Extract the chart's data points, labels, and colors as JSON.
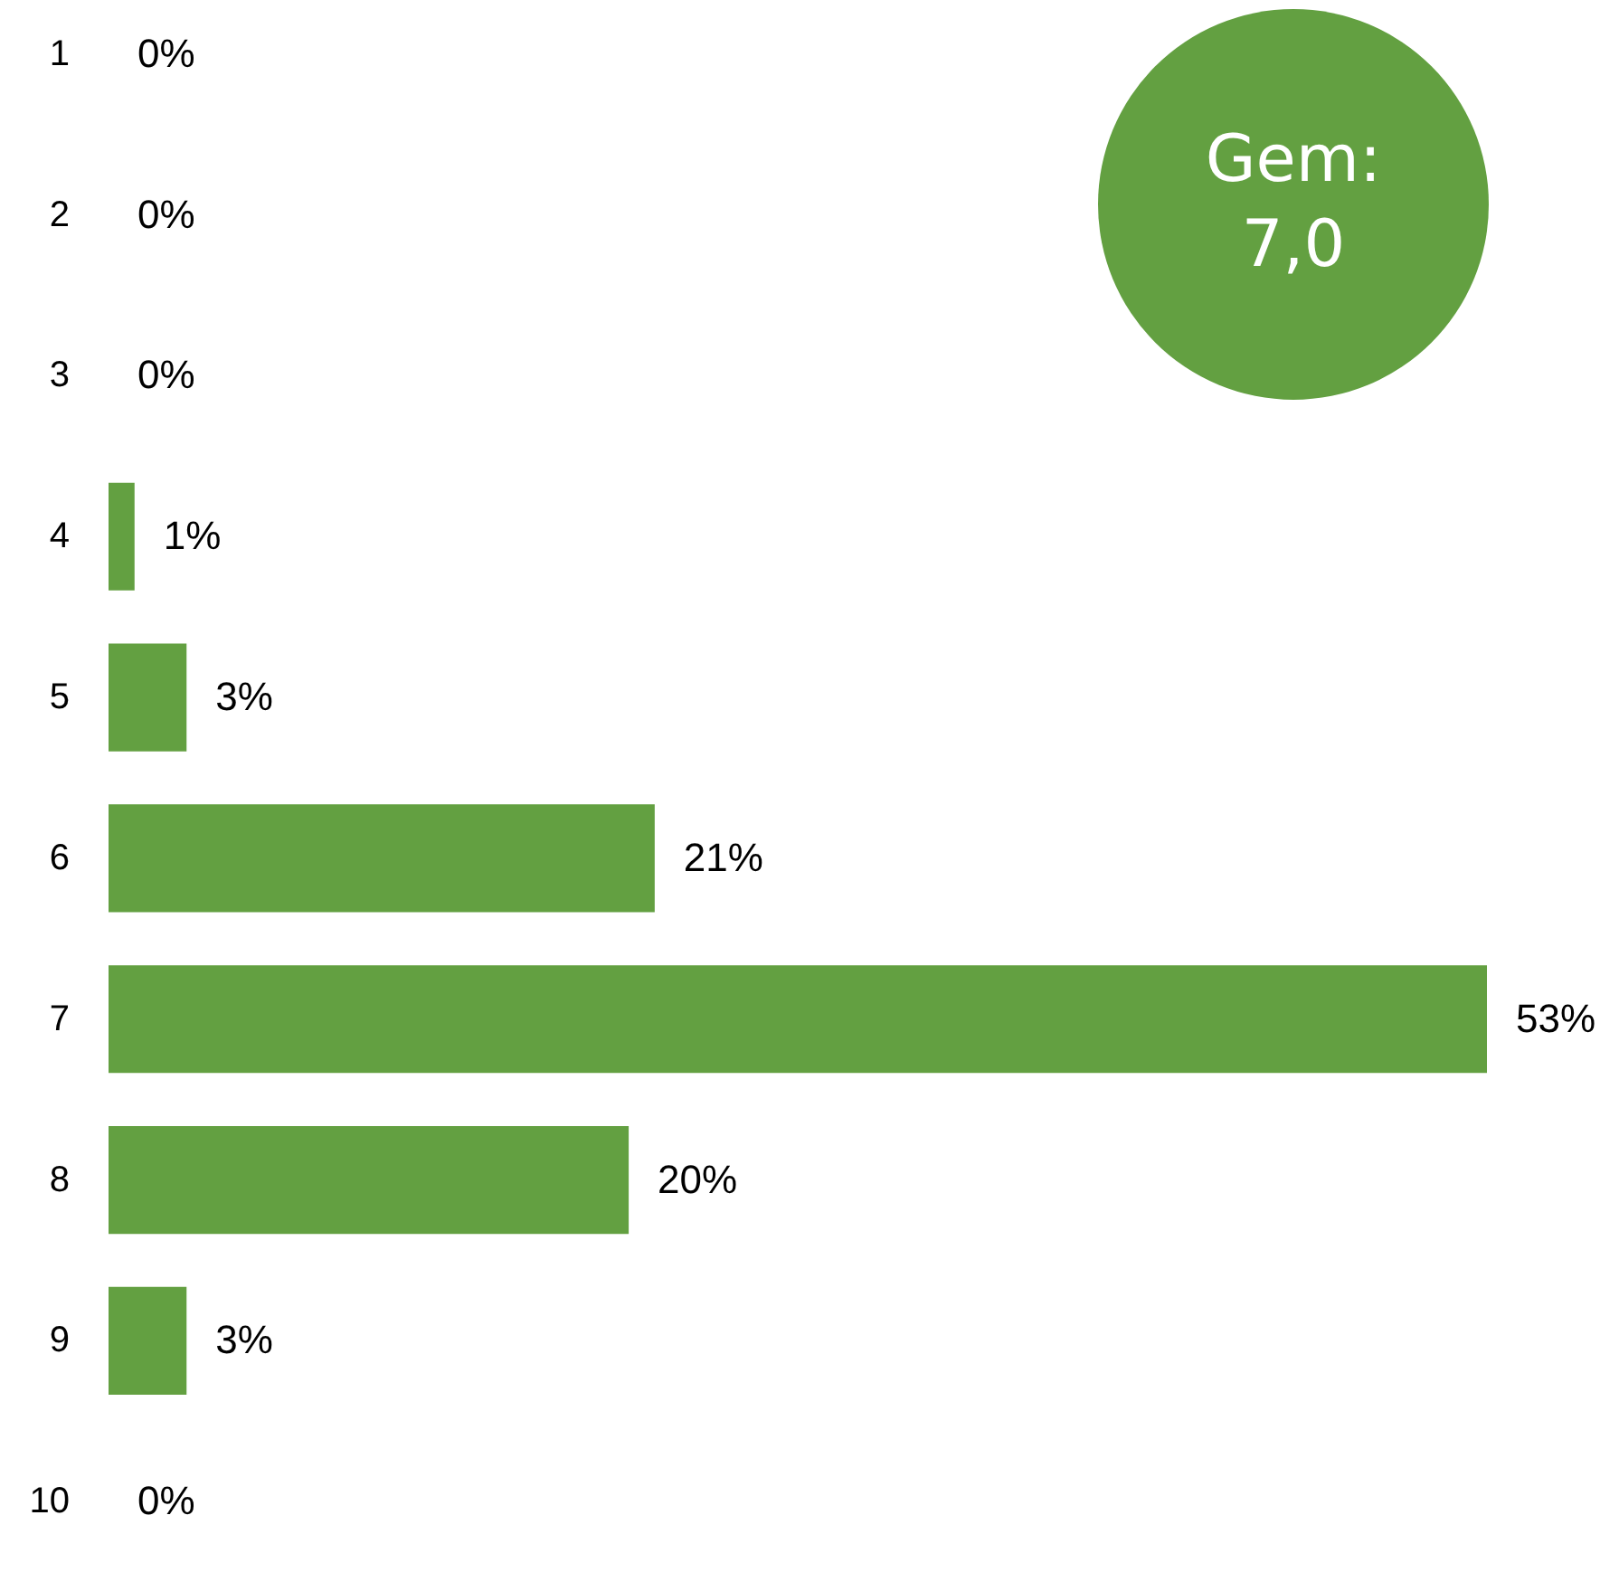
{
  "chart_data": {
    "type": "bar",
    "orientation": "horizontal",
    "categories": [
      "1",
      "2",
      "3",
      "4",
      "5",
      "6",
      "7",
      "8",
      "9",
      "10"
    ],
    "values": [
      0,
      0,
      0,
      1,
      3,
      21,
      53,
      20,
      3,
      0
    ],
    "value_labels": [
      "0%",
      "0%",
      "0%",
      "1%",
      "3%",
      "21%",
      "53%",
      "20%",
      "3%",
      "0%"
    ],
    "color": "#63a041",
    "xlim": [
      0,
      53
    ],
    "tick_labels": "y",
    "annotations": [
      "Gem: 7,0"
    ]
  }
}
